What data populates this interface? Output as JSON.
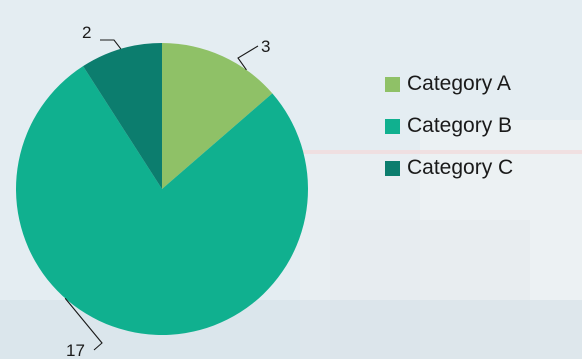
{
  "chart_data": {
    "type": "pie",
    "categories": [
      "Category A",
      "Category B",
      "Category C"
    ],
    "values": [
      3,
      17,
      2
    ],
    "colors": [
      "#8fc167",
      "#10b08f",
      "#0c7d6e"
    ],
    "data_labels": [
      "3",
      "17",
      "2"
    ],
    "title": "",
    "legend_position": "right"
  }
}
